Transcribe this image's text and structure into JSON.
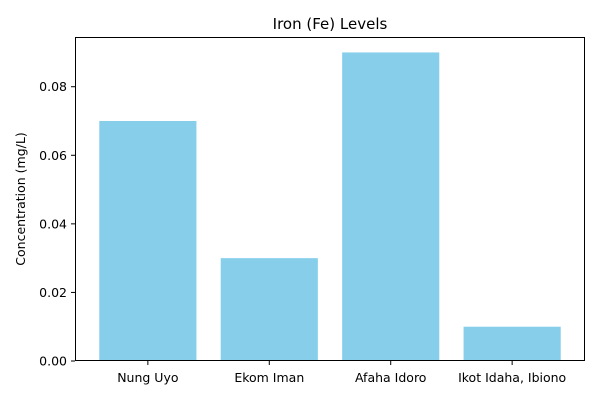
{
  "chart_data": {
    "type": "bar",
    "title": "Iron (Fe) Levels",
    "xlabel": "",
    "ylabel": "Concentration (mg/L)",
    "categories": [
      "Nung Uyo",
      "Ekom Iman",
      "Afaha Idoro",
      "Ikot Idaha, Ibiono"
    ],
    "values": [
      0.07,
      0.03,
      0.09,
      0.01
    ],
    "ylim": [
      0,
      0.0945
    ],
    "yticks": [
      0.0,
      0.02,
      0.04,
      0.06,
      0.08
    ],
    "ytick_labels": [
      "0.00",
      "0.02",
      "0.04",
      "0.06",
      "0.08"
    ],
    "bar_color": "#87ceeb",
    "grid": false,
    "legend": "none"
  }
}
